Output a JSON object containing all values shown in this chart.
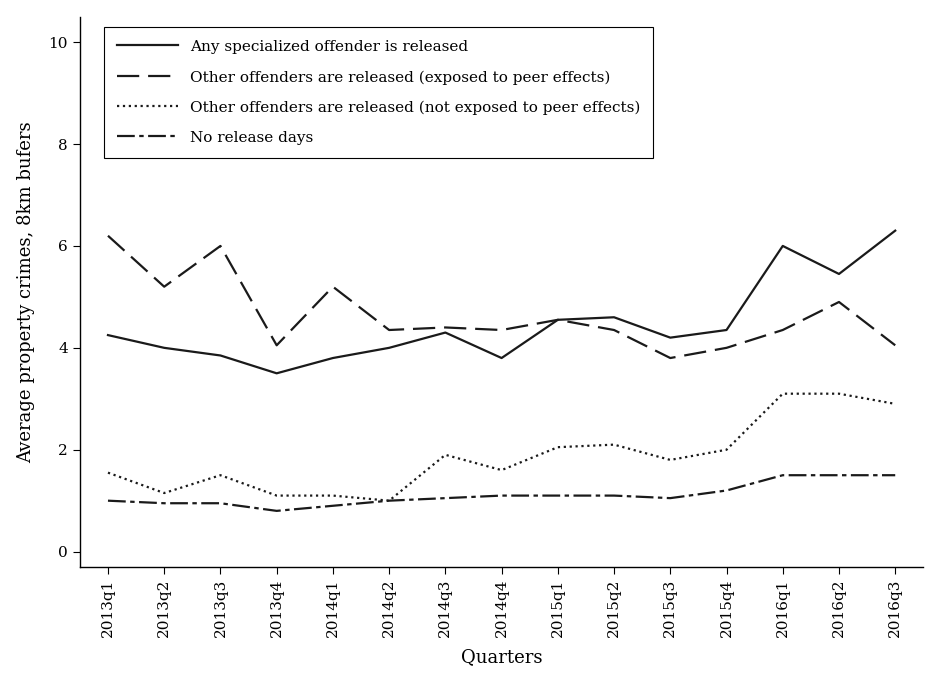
{
  "quarters": [
    "2013q1",
    "2013q2",
    "2013q3",
    "2013q4",
    "2014q1",
    "2014q2",
    "2014q3",
    "2014q4",
    "2015q1",
    "2015q2",
    "2015q3",
    "2015q4",
    "2016q1",
    "2016q2",
    "2016q3"
  ],
  "line1": [
    4.25,
    4.0,
    3.85,
    3.5,
    3.8,
    4.0,
    4.3,
    3.8,
    4.55,
    4.6,
    4.2,
    4.35,
    6.0,
    5.45,
    6.3
  ],
  "line2": [
    6.2,
    5.2,
    6.0,
    4.05,
    5.2,
    4.35,
    4.4,
    4.35,
    4.55,
    4.35,
    3.8,
    4.0,
    4.35,
    4.9,
    4.05
  ],
  "line3": [
    1.55,
    1.15,
    1.5,
    1.1,
    1.1,
    1.0,
    1.9,
    1.6,
    2.05,
    2.1,
    1.8,
    2.0,
    3.1,
    3.1,
    2.9
  ],
  "line4": [
    1.0,
    0.95,
    0.95,
    0.8,
    0.9,
    1.0,
    1.05,
    1.1,
    1.1,
    1.1,
    1.05,
    1.2,
    1.5,
    1.5,
    1.5
  ],
  "line1_label": "Any specialized offender is released",
  "line2_label": "Other offenders are released (exposed to peer effects)",
  "line3_label": "Other offenders are released (not exposed to peer effects)",
  "line4_label": "No release days",
  "ylabel": "Average property crimes, 8km bufers",
  "xlabel": "Quarters",
  "ylim": [
    -0.3,
    10.5
  ],
  "yticks": [
    0,
    2,
    4,
    6,
    8,
    10
  ],
  "color": "#1a1a1a",
  "background": "#ffffff",
  "legend_fontsize": 11,
  "tick_fontsize": 11,
  "label_fontsize": 13
}
